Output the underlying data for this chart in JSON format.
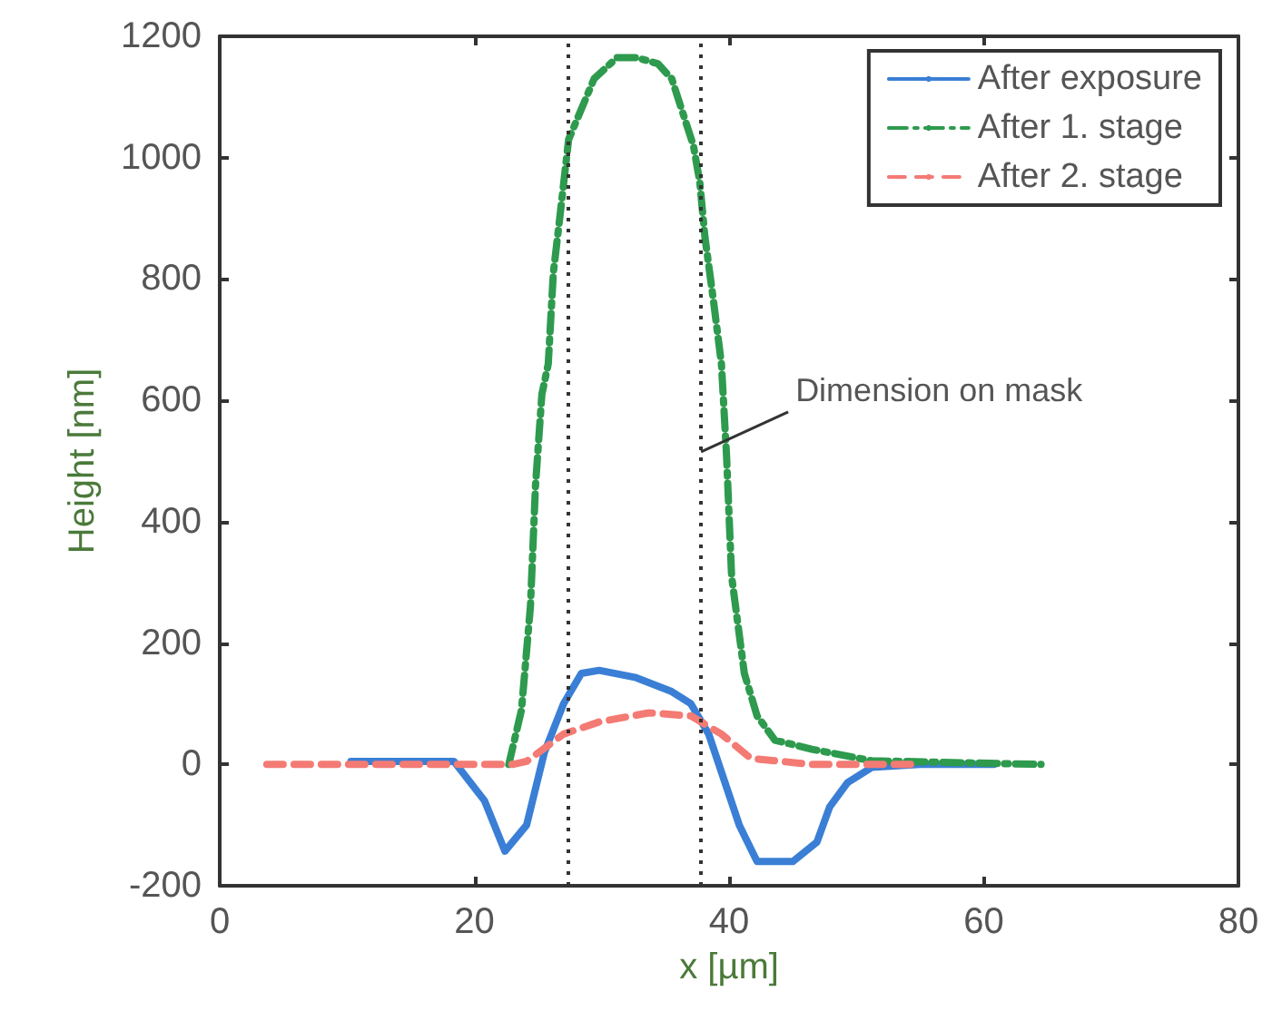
{
  "chart_data": {
    "type": "line",
    "xlabel": "x [µm]",
    "ylabel": "Height [nm]",
    "xlim": [
      0,
      80
    ],
    "xticks": [
      0,
      20,
      40,
      60,
      80
    ],
    "ylim": [
      -200,
      1200
    ],
    "yticks": [
      -200,
      0,
      200,
      400,
      600,
      800,
      1000,
      1200
    ],
    "grid": false,
    "legend": "top right",
    "marker": "none",
    "series": [
      {
        "name": "After exposure",
        "color": "#3a7fd5",
        "line_style": "solid",
        "x": [
          10.3,
          14,
          18.4,
          20.8,
          22.4,
          24.1,
          25.5,
          27,
          28.4,
          29.8,
          32.7,
          35.5,
          37,
          38.4,
          40.8,
          42.2,
          45,
          46.9,
          47.9,
          49.3,
          51.2,
          55,
          60.8
        ],
        "values": [
          5,
          5,
          5,
          -60,
          -143,
          -100,
          20,
          100,
          150,
          155,
          143,
          120,
          100,
          50,
          -100,
          -160,
          -160,
          -128,
          -70,
          -30,
          -5,
          0,
          0
        ]
      },
      {
        "name": "After 1. stage",
        "color": "#2e9a4e",
        "line_style": "dashdot",
        "x": [
          22.7,
          23.7,
          24.4,
          24.8,
          25.3,
          25.8,
          26.2,
          26.7,
          27.4,
          28.4,
          29.4,
          31.2,
          32.7,
          34.4,
          35.5,
          36.5,
          37.2,
          37.7,
          38.1,
          38.8,
          39.4,
          39.8,
          40.2,
          41.2,
          42.2,
          43.6,
          46.5,
          51.2,
          64.5
        ],
        "values": [
          0,
          90,
          260,
          460,
          610,
          660,
          810,
          900,
          1030,
          1080,
          1130,
          1165,
          1165,
          1155,
          1130,
          1065,
          1020,
          960,
          870,
          760,
          660,
          510,
          310,
          150,
          80,
          40,
          25,
          6,
          0
        ]
      },
      {
        "name": "After 2. stage",
        "color": "#f47a74",
        "line_style": "dashed",
        "x": [
          3.7,
          15,
          23,
          24.1,
          27,
          29.8,
          33.7,
          37,
          39.4,
          41.7,
          46.5,
          54.5
        ],
        "values": [
          0,
          0,
          0,
          5,
          50,
          70,
          85,
          80,
          50,
          10,
          0,
          0
        ]
      }
    ],
    "ref_lines": [
      {
        "axis": "x",
        "value": 27.4,
        "label": null,
        "color": "#333333",
        "line_style": "dotted"
      },
      {
        "axis": "x",
        "value": 37.8,
        "label": null,
        "color": "#333333",
        "line_style": "dotted"
      }
    ],
    "annotations": [
      {
        "text": "Dimension on mask",
        "x": 37.8,
        "y": 515
      }
    ]
  }
}
